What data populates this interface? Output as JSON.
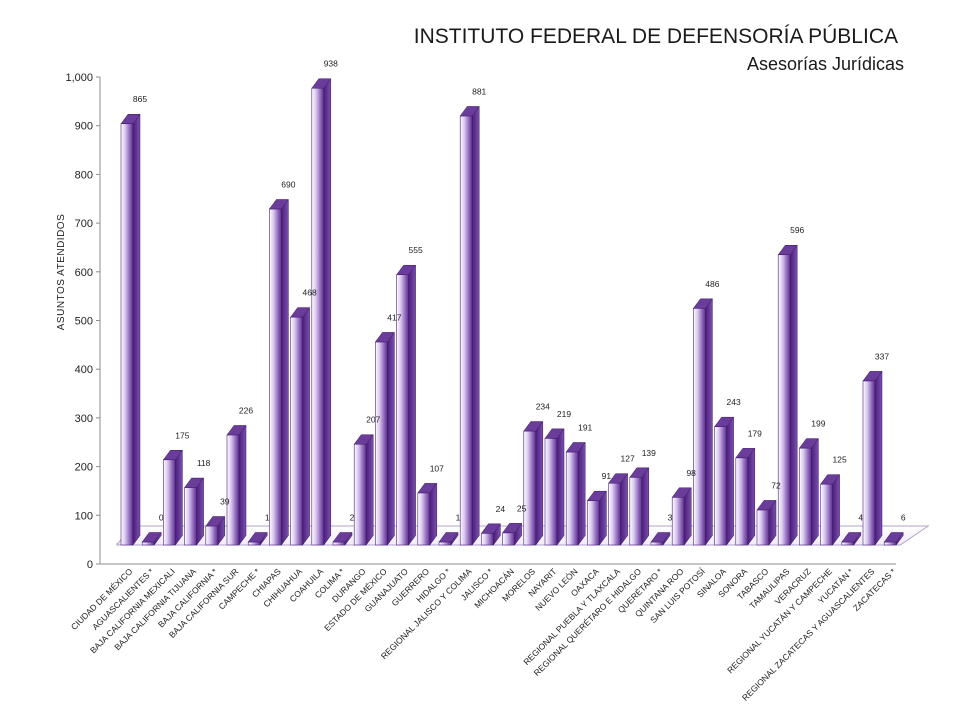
{
  "chart_data": {
    "type": "bar",
    "title": "INSTITUTO FEDERAL DE DEFENSORÍA PÚBLICA",
    "subtitle": "Asesorías Jurídicas",
    "xlabel": "",
    "ylabel": "ASUNTOS ATENDIDOS",
    "ylim": [
      0,
      1000
    ],
    "yticks": [
      "0",
      "100",
      "200",
      "300",
      "400",
      "500",
      "600",
      "700",
      "800",
      "900",
      "1,000"
    ],
    "grid": false,
    "legend": "none",
    "bar_color": "#6a3d9a",
    "categories": [
      "CIUDAD DE MÉXICO",
      "AGUASCALIENTES *",
      "BAJA CALIFORNIA MEXICALI",
      "BAJA CALIFORNIA TIJUANA",
      "BAJA CALIFORNIA *",
      "BAJA CALIFORNIA SUR",
      "CAMPECHE *",
      "CHIAPAS",
      "CHIHUAHUA",
      "COAHUILA",
      "COLIMA *",
      "DURANGO",
      "ESTADO DE MÉXICO",
      "GUANAJUATO",
      "GUERRERO",
      "HIDALGO *",
      "REGIONAL JALISCO Y COLIMA",
      "JALISCO *",
      "MICHOACÁN",
      "MORELOS",
      "NAYARIT",
      "NUEVO LEÓN",
      "OAXACA",
      "REGIONAL PUEBLA Y TLAXCALA",
      "REGIONAL QUERÉTARO E HIDALGO",
      "QUERÉTARO *",
      "QUINTANA ROO",
      "SAN LUIS POTOSÍ",
      "SINALOA",
      "SONORA",
      "TABASCO",
      "TAMAULIPAS",
      "VERACRUZ",
      "REGIONAL YUCATÁN Y CAMPECHE",
      "YUCATÁN *",
      "REGIONAL ZACATECAS Y AGUASCALIENTES",
      "ZACATECAS *"
    ],
    "values": [
      865,
      0,
      175,
      118,
      39,
      226,
      1,
      690,
      468,
      938,
      2,
      207,
      417,
      555,
      107,
      1,
      881,
      24,
      25,
      234,
      219,
      191,
      91,
      127,
      139,
      3,
      98,
      486,
      243,
      179,
      72,
      596,
      199,
      125,
      4,
      337,
      6
    ],
    "labels": [
      "865",
      "0",
      "175",
      "118",
      "39",
      "226",
      "1",
      "690",
      "468",
      "938",
      "2",
      "207",
      "417",
      "555",
      "107",
      "1",
      "881",
      "24",
      "25",
      "234",
      "219",
      "191",
      "91",
      "127",
      "139",
      "3",
      "98",
      "486",
      "243",
      "179",
      "72",
      "596",
      "199",
      "125",
      "4",
      "337",
      "6"
    ]
  }
}
